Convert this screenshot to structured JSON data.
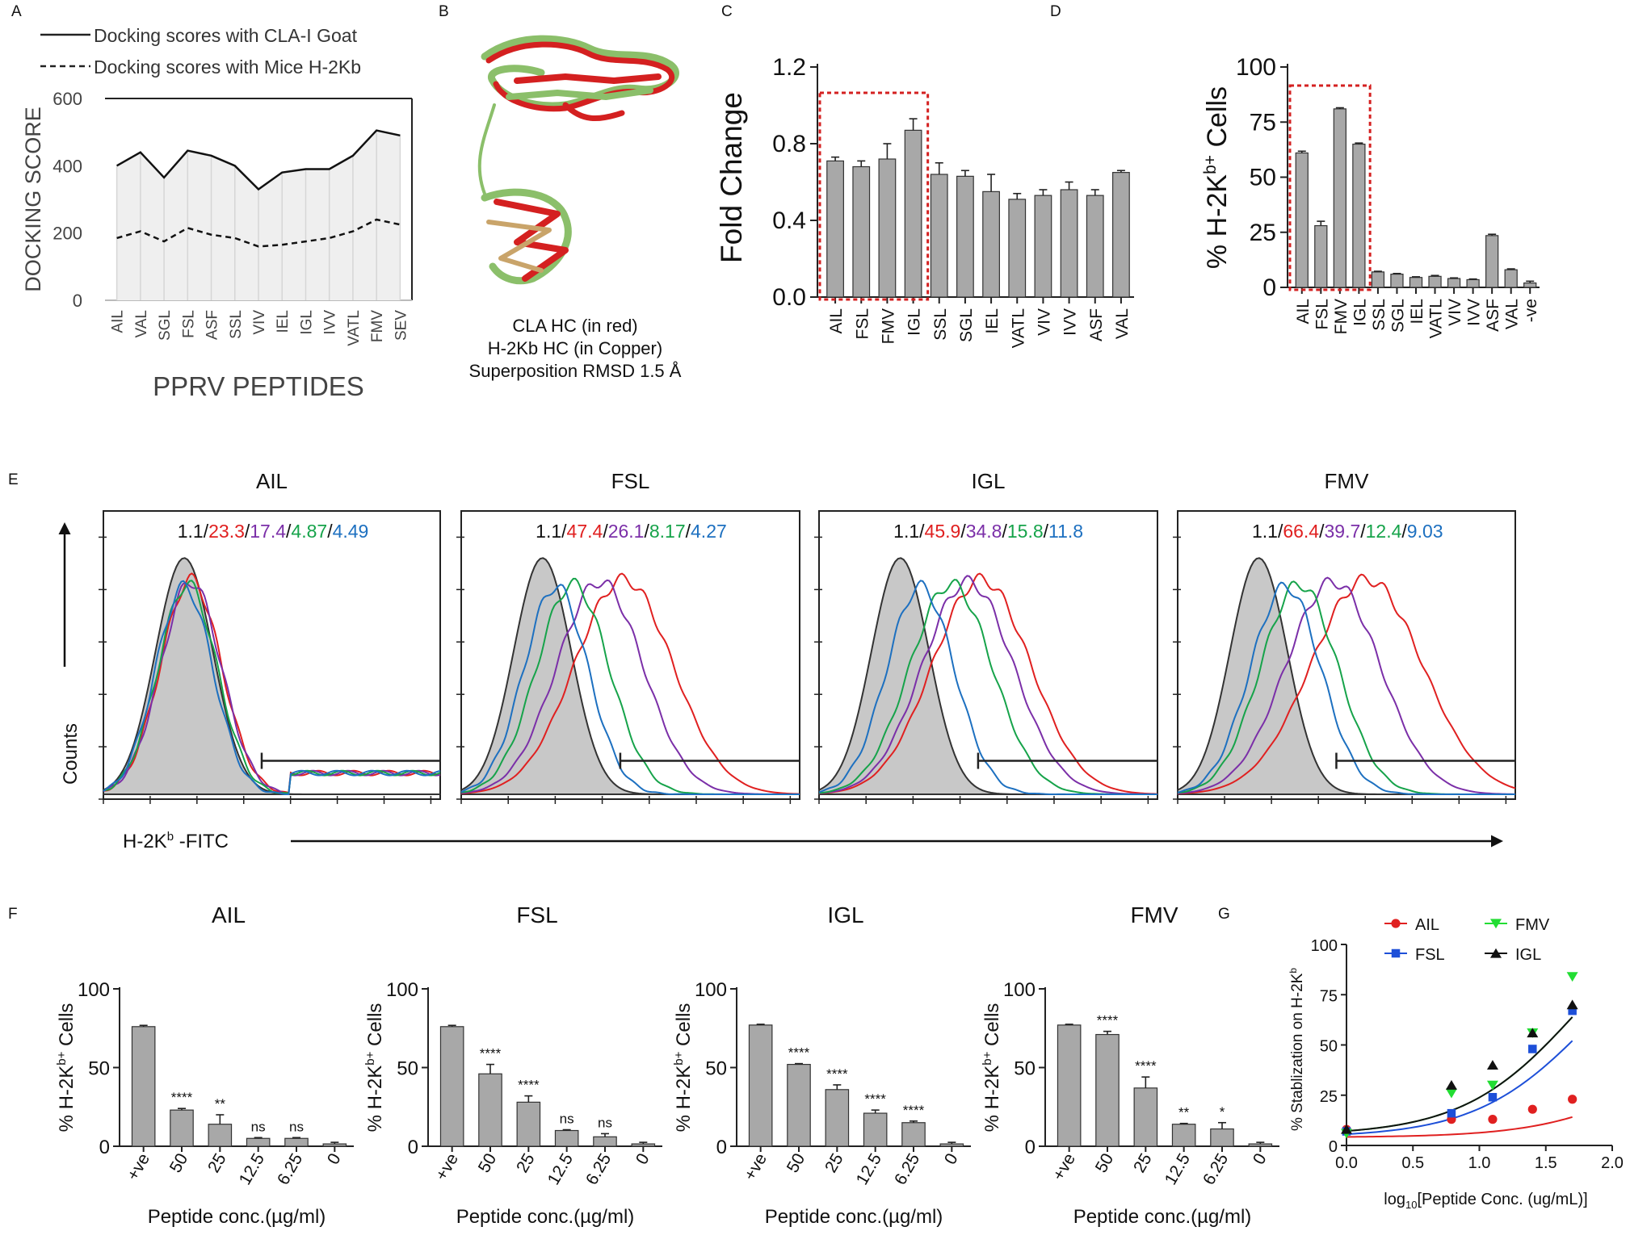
{
  "chart_data": [
    {
      "panel": "A",
      "type": "line",
      "legend": [
        "Docking scores with  CLA-I Goat",
        "Docking scores with Mice H-2Kb"
      ],
      "ylabel": "DOCKING SCORE",
      "xlabel": "PPRV PEPTIDES",
      "ylim": [
        0,
        600
      ],
      "yticks": [
        "600",
        "400",
        "200",
        "0"
      ],
      "categories": [
        "AIL",
        "VAL",
        "SGL",
        "FSL",
        "ASF",
        "SSL",
        "VIV",
        "IEL",
        "IGL",
        "IVV",
        "VATL",
        "FMV",
        "SEV"
      ],
      "series": [
        {
          "name": "Docking scores with  CLA-I Goat",
          "values": [
            400,
            440,
            365,
            445,
            430,
            400,
            330,
            380,
            390,
            390,
            430,
            505,
            490
          ]
        },
        {
          "name": "Docking scores with Mice H-2Kb",
          "values": [
            185,
            205,
            175,
            215,
            195,
            185,
            160,
            165,
            175,
            185,
            205,
            240,
            225
          ]
        }
      ]
    },
    {
      "panel": "B",
      "type": "structure",
      "caption": [
        "CLA HC (in red)",
        "H-2Kb HC (in Copper)",
        "Superposition RMSD 1.5 Å"
      ]
    },
    {
      "panel": "C",
      "type": "bar",
      "ylabel": "Fold Change",
      "ylim": [
        0,
        1.2
      ],
      "yticks": [
        "1.2",
        "0.8",
        "0.4",
        "0.0"
      ],
      "categories": [
        "AIL",
        "FSL",
        "FMV",
        "IGL",
        "SSL",
        "SGL",
        "IEL",
        "VATL",
        "VIV",
        "IVV",
        "ASF",
        "VAL"
      ],
      "values": [
        0.71,
        0.68,
        0.72,
        0.87,
        0.64,
        0.63,
        0.55,
        0.51,
        0.53,
        0.56,
        0.53,
        0.65
      ],
      "errors": [
        0.02,
        0.03,
        0.08,
        0.06,
        0.06,
        0.03,
        0.09,
        0.03,
        0.03,
        0.04,
        0.03,
        0.01
      ],
      "highlight_count": 4
    },
    {
      "panel": "D",
      "type": "bar",
      "ylabel_main": "% H-2K",
      "ylabel_sup": "b+",
      "ylabel_tail": " Cells",
      "ylim": [
        0,
        100
      ],
      "yticks": [
        "100",
        "75",
        "50",
        "25",
        "0"
      ],
      "categories": [
        "AIL",
        "FSL",
        "FMV",
        "IGL",
        "SSL",
        "SGL",
        "IEL",
        "VATL",
        "VIV",
        "IVV",
        "ASF",
        "VAL",
        "-ve"
      ],
      "values": [
        61,
        28,
        81,
        65,
        7,
        6,
        4.5,
        5,
        4,
        3.5,
        23.5,
        8,
        2
      ],
      "errors": [
        0.8,
        2,
        0.5,
        0.5,
        0.3,
        0.3,
        0.3,
        0.4,
        0.3,
        0.3,
        0.6,
        0.4,
        0.8
      ],
      "highlight_count": 4
    },
    {
      "panel": "E",
      "type": "histogram_overlay",
      "ylabel": "Counts",
      "xlabel_main": "H-2K",
      "xlabel_sup": "b",
      "xlabel_tail": " -FITC",
      "separator": "/",
      "series_colors": [
        "#111111",
        "#e02020",
        "#7b2fa8",
        "#16a34a",
        "#1d70c0"
      ],
      "panels": [
        {
          "title": "AIL",
          "values": [
            "1.1",
            "23.3",
            "17.4",
            "4.87",
            "4.49"
          ],
          "peak_shifts": [
            0.0,
            0.02,
            0.02,
            0.01,
            0.0
          ],
          "tail_plateau": true
        },
        {
          "title": "FSL",
          "values": [
            "1.1",
            "47.4",
            "26.1",
            "8.17",
            "4.27"
          ],
          "peak_shifts": [
            0.0,
            0.24,
            0.17,
            0.09,
            0.04
          ],
          "tail_plateau": false
        },
        {
          "title": "IGL",
          "values": [
            "1.1",
            "45.9",
            "34.8",
            "15.8",
            "11.8"
          ],
          "peak_shifts": [
            0.0,
            0.24,
            0.2,
            0.15,
            0.06
          ],
          "tail_plateau": false
        },
        {
          "title": "FMV",
          "values": [
            "1.1",
            "66.4",
            "39.7",
            "12.4",
            "9.03"
          ],
          "peak_shifts": [
            0.0,
            0.32,
            0.22,
            0.12,
            0.08
          ],
          "tail_plateau": false
        }
      ]
    },
    {
      "panel": "F",
      "type": "bar",
      "ylabel_main": "% H-2K",
      "ylabel_sup": "b+",
      "ylabel_tail": " Cells",
      "xlabel": "Peptide conc.(µg/ml)",
      "ylim": [
        0,
        100
      ],
      "yticks": [
        "100",
        "50",
        "0"
      ],
      "categories": [
        "+ve",
        "50",
        "25",
        "12.5",
        "6.25",
        "0"
      ],
      "panels": [
        {
          "title": "AIL",
          "values": [
            76,
            23,
            14,
            5,
            5,
            1.5
          ],
          "errors": [
            0.8,
            1,
            6,
            0.5,
            0.5,
            1
          ],
          "sig": [
            "",
            "****",
            "**",
            "ns",
            "ns",
            ""
          ]
        },
        {
          "title": "FSL",
          "values": [
            76,
            46,
            28,
            10,
            6,
            1.5
          ],
          "errors": [
            0.8,
            6,
            4,
            0.5,
            2,
            1
          ],
          "sig": [
            "",
            "****",
            "****",
            "ns",
            "ns",
            ""
          ]
        },
        {
          "title": "IGL",
          "values": [
            77,
            52,
            36,
            21,
            15,
            1.5
          ],
          "errors": [
            0.5,
            0.5,
            3,
            2,
            1,
            1
          ],
          "sig": [
            "",
            "****",
            "****",
            "****",
            "****",
            ""
          ]
        },
        {
          "title": "FMV",
          "values": [
            77,
            71,
            37,
            14,
            11,
            1.5
          ],
          "errors": [
            0.5,
            2,
            7,
            0.5,
            4,
            1
          ],
          "sig": [
            "",
            "****",
            "****",
            "**",
            "*",
            ""
          ]
        }
      ]
    },
    {
      "panel": "G",
      "type": "scatter",
      "ylabel_main": "% Stablization on H-2K",
      "ylabel_sup": "b",
      "xlabel_pre": "log",
      "xlabel_sub": "10",
      "xlabel_post": "[Peptide Conc. (ug/mL)]",
      "xlim": [
        0,
        2.0
      ],
      "ylim": [
        0,
        100
      ],
      "xticks": [
        "0.0",
        "0.5",
        "1.0",
        "1.5",
        "2.0"
      ],
      "yticks": [
        "100",
        "75",
        "50",
        "25",
        "0"
      ],
      "series": [
        {
          "name": "AIL",
          "color": "#e02020",
          "marker": "circle",
          "x": [
            0,
            0.79,
            1.1,
            1.4,
            1.7
          ],
          "y": [
            8,
            13,
            13,
            18,
            23
          ],
          "fit": [
            4,
            0,
            65,
            2.4
          ]
        },
        {
          "name": "FSL",
          "color": "#1d4fd8",
          "marker": "square",
          "x": [
            0,
            0.79,
            1.1,
            1.4,
            1.7
          ],
          "y": [
            7,
            16,
            24,
            48,
            67
          ],
          "fit": [
            4,
            0,
            120,
            1.85
          ]
        },
        {
          "name": "FMV",
          "color": "#22dd33",
          "marker": "triangle-down",
          "x": [
            0,
            0.79,
            1.1,
            1.4,
            1.7
          ],
          "y": [
            6,
            26,
            30,
            56,
            84
          ],
          "fit": [
            5,
            0,
            130,
            1.75
          ]
        },
        {
          "name": "IGL",
          "color": "#111111",
          "marker": "triangle-up",
          "x": [
            0,
            0.79,
            1.1,
            1.4,
            1.7
          ],
          "y": [
            8,
            30,
            40,
            56,
            70
          ],
          "fit": [
            5,
            0,
            130,
            1.75
          ]
        }
      ]
    }
  ],
  "panel_letters": [
    "A",
    "B",
    "C",
    "D",
    "E",
    "F",
    "G"
  ],
  "colors": {
    "bar": "#a8a8a8",
    "highlight": "#d42020",
    "fill_grey": "#c8c8c8"
  }
}
